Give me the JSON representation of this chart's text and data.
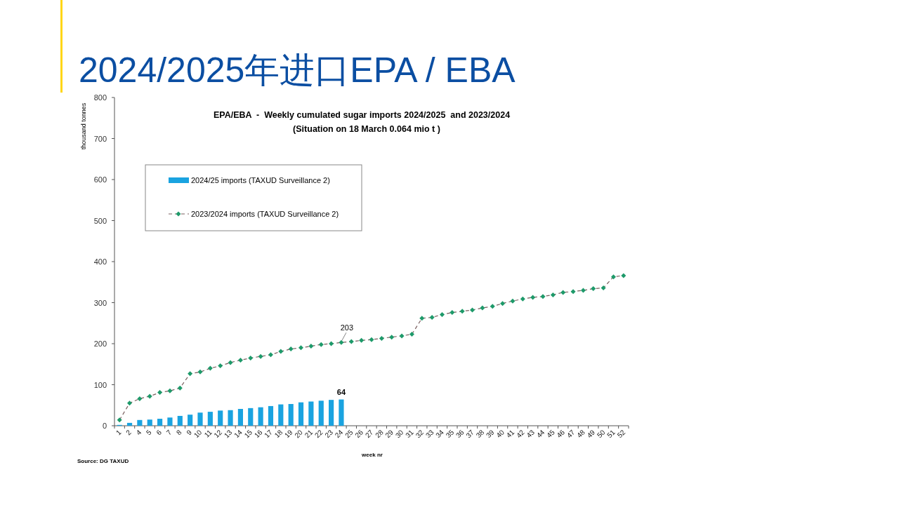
{
  "chart_data": {
    "type": "bar",
    "title": "2024/2025年进口EPA / EBA",
    "subtitle": "EPA/EBA  -  Weekly cumulated sugar imports 2024/2025  and 2023/2024",
    "xlabel": "week nr",
    "ylabel": "thousand tonnes",
    "annotations": [
      "(Situation on 18 March 0.064 mio t )",
      "Source: DG TAXUD",
      {
        "text": "203",
        "x": "24",
        "y": 203
      }
    ],
    "categories": [
      "1",
      "2",
      "4",
      "5",
      "6",
      "7",
      "8",
      "9",
      "10",
      "11",
      "12",
      "13",
      "14",
      "15",
      "16",
      "17",
      "18",
      "19",
      "20",
      "21",
      "22",
      "23",
      "24",
      "25",
      "26",
      "27",
      "28",
      "29",
      "30",
      "31",
      "32",
      "33",
      "34",
      "35",
      "36",
      "37",
      "38",
      "39",
      "40",
      "41",
      "42",
      "43",
      "44",
      "45",
      "46",
      "47",
      "48",
      "49",
      "50",
      "51",
      "52"
    ],
    "series": [
      {
        "name": "2024/25 imports (TAXUD Surveillance 2)",
        "color": "#1aa3e0",
        "values": [
          2,
          7,
          14,
          15,
          17,
          20,
          24,
          27,
          32,
          34,
          37,
          38,
          41,
          43,
          45,
          48,
          52,
          53,
          57,
          59,
          61,
          63,
          64,
          null,
          null,
          null,
          null,
          null,
          null,
          null,
          null,
          null,
          null,
          null,
          null,
          null,
          null,
          null,
          null,
          null,
          null,
          null,
          null,
          null,
          null,
          null,
          null,
          null,
          null,
          null,
          null
        ],
        "value_labels": [
          null,
          null,
          null,
          null,
          null,
          null,
          null,
          null,
          null,
          null,
          null,
          null,
          null,
          null,
          null,
          null,
          null,
          null,
          null,
          null,
          null,
          null,
          "64",
          null,
          null,
          null,
          null,
          null,
          null,
          null,
          null,
          null,
          null,
          null,
          null,
          null,
          null,
          null,
          null,
          null,
          null,
          null,
          null,
          null,
          null,
          null,
          null,
          null,
          null,
          null,
          null
        ]
      },
      {
        "name": "2023/2024 imports (TAXUD Surveillance 2)",
        "type": "line",
        "color": "#1e9a6a",
        "values": [
          14,
          55,
          66,
          72,
          81,
          85,
          92,
          127,
          131,
          140,
          146,
          154,
          160,
          165,
          169,
          173,
          181,
          187,
          190,
          194,
          198,
          200,
          203,
          205,
          208,
          210,
          213,
          216,
          219,
          223,
          262,
          264,
          271,
          276,
          279,
          282,
          287,
          291,
          298,
          304,
          309,
          313,
          315,
          319,
          325,
          327,
          330,
          334,
          336,
          363,
          366
        ]
      }
    ],
    "ylim": [
      0,
      800
    ],
    "yticks": [
      0,
      100,
      200,
      300,
      400,
      500,
      600,
      700,
      800
    ],
    "grid": false,
    "legend": "top left",
    "marker": "diamond",
    "line_style": "dashed"
  }
}
